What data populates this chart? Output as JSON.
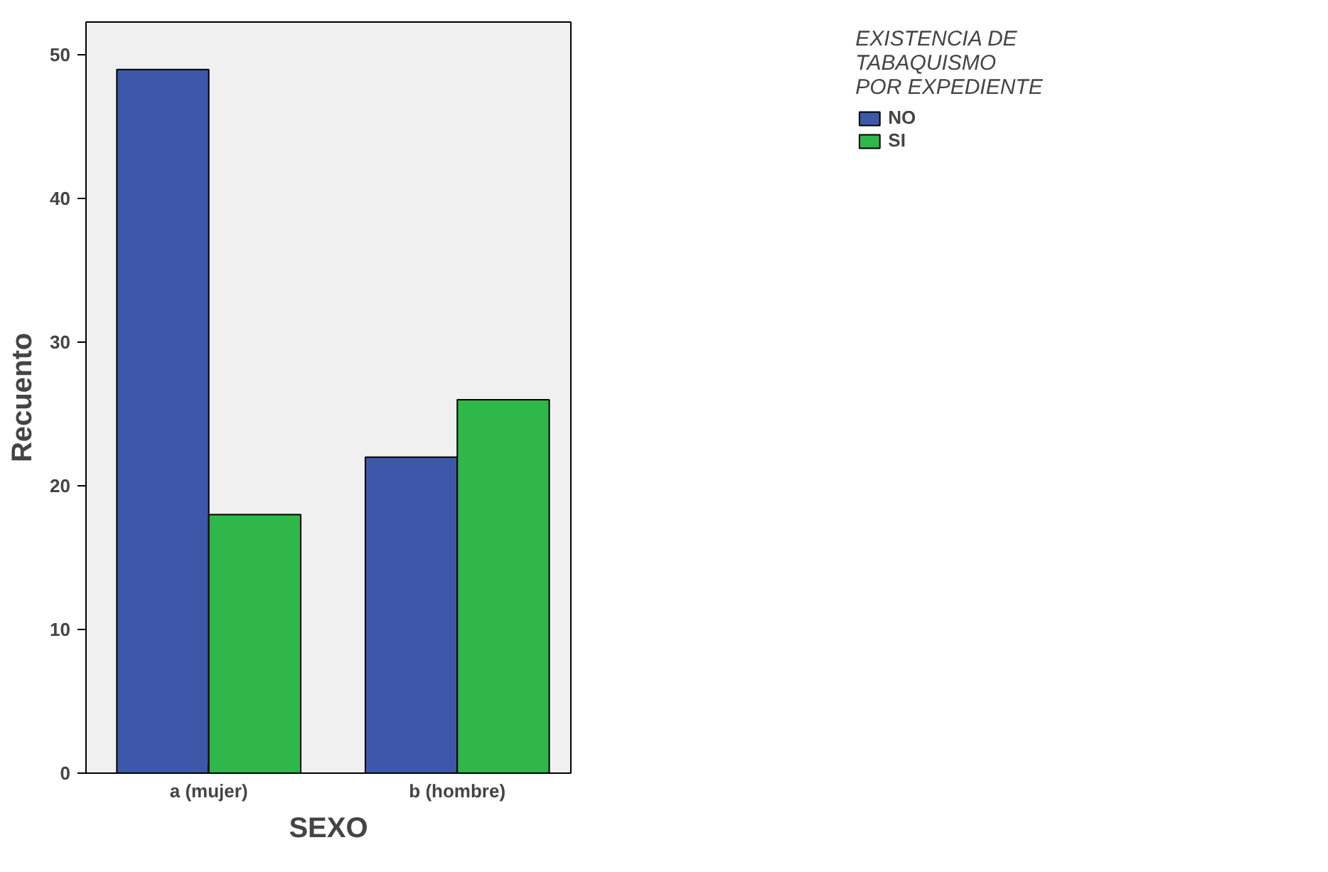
{
  "chart_data": {
    "type": "bar",
    "xlabel": "SEXO",
    "ylabel": "Recuento",
    "legend_title": "EXISTENCIA DE\nTABAQUISMO\nPOR EXPEDIENTE",
    "categories": [
      "a (mujer)",
      "b (hombre)"
    ],
    "series": [
      {
        "name": "NO",
        "color": "#3d58a9",
        "values": [
          49,
          22
        ]
      },
      {
        "name": "SI",
        "color": "#2fb74a",
        "values": [
          18,
          26
        ]
      }
    ],
    "ylim": [
      0,
      52.3
    ],
    "yticks": [
      0,
      10,
      20,
      30,
      40,
      50
    ],
    "grid": false,
    "legend": "top right"
  }
}
